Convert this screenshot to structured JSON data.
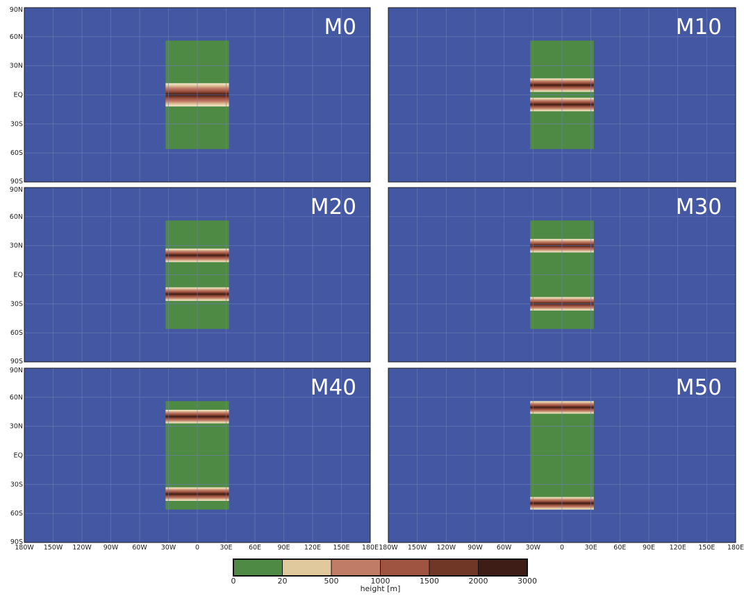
{
  "figure": {
    "panels": [
      {
        "label": "M0",
        "ridges": [
          {
            "lat_min": -12,
            "lat_max": 12
          }
        ]
      },
      {
        "label": "M10",
        "ridges": [
          {
            "lat_min": 3,
            "lat_max": 17
          },
          {
            "lat_min": -17,
            "lat_max": -3
          }
        ]
      },
      {
        "label": "M20",
        "ridges": [
          {
            "lat_min": 13,
            "lat_max": 27
          },
          {
            "lat_min": -27,
            "lat_max": -13
          }
        ]
      },
      {
        "label": "M30",
        "ridges": [
          {
            "lat_min": 23,
            "lat_max": 37
          },
          {
            "lat_min": -37,
            "lat_max": -23
          }
        ]
      },
      {
        "label": "M40",
        "ridges": [
          {
            "lat_min": 33,
            "lat_max": 47
          },
          {
            "lat_min": -47,
            "lat_max": -33
          }
        ]
      },
      {
        "label": "M50",
        "ridges": [
          {
            "lat_min": 43,
            "lat_max": 56
          },
          {
            "lat_min": -56,
            "lat_max": -43
          }
        ]
      }
    ],
    "continent": {
      "lon_min": -33,
      "lon_max": 33,
      "lat_min": -56,
      "lat_max": 56
    },
    "lat_ticks": [
      {
        "value": 90,
        "label": "90N"
      },
      {
        "value": 60,
        "label": "60N"
      },
      {
        "value": 30,
        "label": "30N"
      },
      {
        "value": 0,
        "label": "EQ"
      },
      {
        "value": -30,
        "label": "30S"
      },
      {
        "value": -60,
        "label": "60S"
      },
      {
        "value": -90,
        "label": "90S"
      }
    ],
    "lon_ticks": [
      {
        "value": -180,
        "label": "180W"
      },
      {
        "value": -150,
        "label": "150W"
      },
      {
        "value": -120,
        "label": "120W"
      },
      {
        "value": -90,
        "label": "90W"
      },
      {
        "value": -60,
        "label": "60W"
      },
      {
        "value": -30,
        "label": "30W"
      },
      {
        "value": 0,
        "label": "0"
      },
      {
        "value": 30,
        "label": "30E"
      },
      {
        "value": 60,
        "label": "60E"
      },
      {
        "value": 90,
        "label": "90E"
      },
      {
        "value": 120,
        "label": "120E"
      },
      {
        "value": 150,
        "label": "150E"
      },
      {
        "value": 180,
        "label": "180E"
      }
    ],
    "colors": {
      "ocean": "#4457a3",
      "land": "#4f8a45",
      "grid": "#6e7fb8"
    },
    "colorbar": {
      "label": "height [m]",
      "ticks": [
        "0",
        "20",
        "500",
        "1000",
        "1500",
        "2000",
        "3000"
      ],
      "colors": [
        "#4f8a45",
        "#e0c99c",
        "#c17c68",
        "#9f5441",
        "#703626",
        "#3d1d16"
      ]
    }
  }
}
